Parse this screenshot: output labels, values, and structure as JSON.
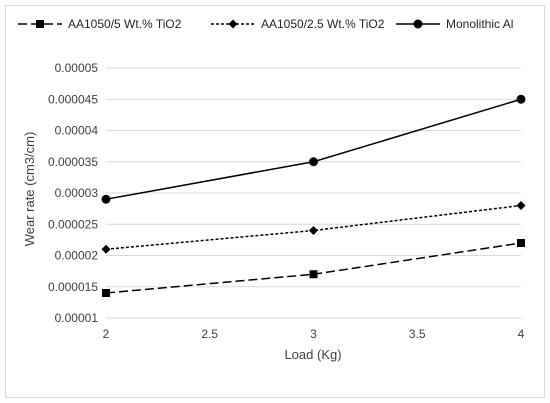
{
  "chart_data": {
    "type": "line",
    "title": "",
    "xlabel": "Load (Kg)",
    "ylabel": "Wear rate (cm3/cm)",
    "x": [
      2,
      3,
      4
    ],
    "xlim": [
      2,
      4
    ],
    "ylim": [
      1e-05,
      5e-05
    ],
    "x_ticks": [
      "2",
      "2.5",
      "3",
      "3.5",
      "4"
    ],
    "y_ticks": [
      "0.00001",
      "0.000015",
      "0.00002",
      "0.000025",
      "0.00003",
      "0.000035",
      "0.00004",
      "0.000045",
      "0.00005"
    ],
    "grid": "horizontal",
    "legend_position": "top",
    "series": [
      {
        "name": "AA1050/5 Wt.% TiO2",
        "values": [
          1.4e-05,
          1.7e-05,
          2.2e-05
        ],
        "line_style": "long-dash",
        "marker": "square",
        "color": "#000000"
      },
      {
        "name": "AA1050/2.5 Wt.% TiO2",
        "values": [
          2.1e-05,
          2.4e-05,
          2.8e-05
        ],
        "line_style": "dotted",
        "marker": "diamond",
        "color": "#000000"
      },
      {
        "name": "Monolithic Al",
        "values": [
          2.9e-05,
          3.5e-05,
          4.5e-05
        ],
        "line_style": "solid",
        "marker": "circle",
        "color": "#000000"
      }
    ]
  }
}
